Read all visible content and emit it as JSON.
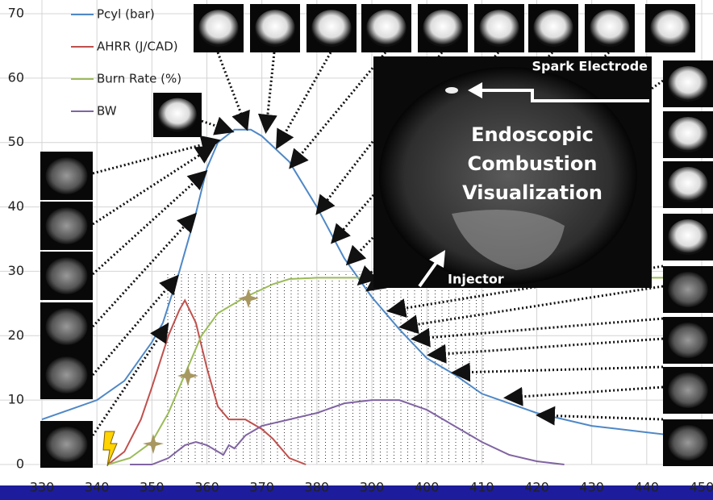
{
  "chart_data": {
    "type": "line",
    "xlim": [
      330,
      450
    ],
    "xticks": [
      330,
      340,
      350,
      360,
      370,
      380,
      390,
      400,
      410,
      420,
      430,
      440,
      450
    ],
    "ylim": [
      0,
      70
    ],
    "yticks": [
      0,
      10,
      20,
      30,
      40,
      50,
      60,
      70
    ],
    "grid": true,
    "series": [
      {
        "name": "Pcyl (bar)",
        "color": "#4f88c6",
        "x": [
          330,
          340,
          345,
          350,
          352,
          355,
          358,
          360,
          362,
          365,
          368,
          370,
          375,
          380,
          385,
          390,
          395,
          400,
          405,
          410,
          415,
          420,
          430,
          440,
          445
        ],
        "values": [
          7,
          10,
          13,
          19,
          22,
          30,
          39,
          46,
          50,
          52,
          52,
          51,
          47,
          40,
          32,
          26,
          21,
          16.5,
          14,
          11,
          9.5,
          8,
          6,
          5,
          4.5
        ]
      },
      {
        "name": "AHRR (J/CAD)",
        "color": "#c0504d",
        "x": [
          342,
          345,
          348,
          350,
          353,
          355,
          356,
          358,
          360,
          362,
          364,
          367,
          370,
          372,
          375,
          378
        ],
        "values": [
          0,
          2,
          7,
          12,
          20,
          24,
          25.5,
          22,
          15,
          9,
          7,
          7,
          5.5,
          4,
          1,
          0
        ]
      },
      {
        "name": "Burn Rate (%)",
        "color": "#9bbb59",
        "x": [
          342,
          346,
          350,
          353,
          356,
          359,
          362,
          367,
          372,
          375,
          380,
          445
        ],
        "values": [
          0,
          1,
          3.5,
          8,
          14,
          20,
          23.5,
          26,
          28,
          28.8,
          29,
          29
        ]
      },
      {
        "name": "BW",
        "color": "#8064a2",
        "x": [
          346,
          350,
          353,
          356,
          358,
          360,
          362,
          363,
          364,
          365,
          367,
          370,
          375,
          380,
          385,
          390,
          395,
          400,
          405,
          410,
          415,
          420,
          425
        ],
        "values": [
          0,
          0,
          1,
          3,
          3.5,
          3,
          2,
          1.5,
          3,
          2.5,
          4.5,
          6,
          7,
          8,
          9.5,
          10,
          10,
          8.5,
          6,
          3.5,
          1.5,
          0.5,
          0
        ]
      }
    ]
  },
  "annotations": {
    "title": "Endoscopic Combustion Visualization",
    "spark": "Spark Electrode",
    "injector": "Injector"
  }
}
